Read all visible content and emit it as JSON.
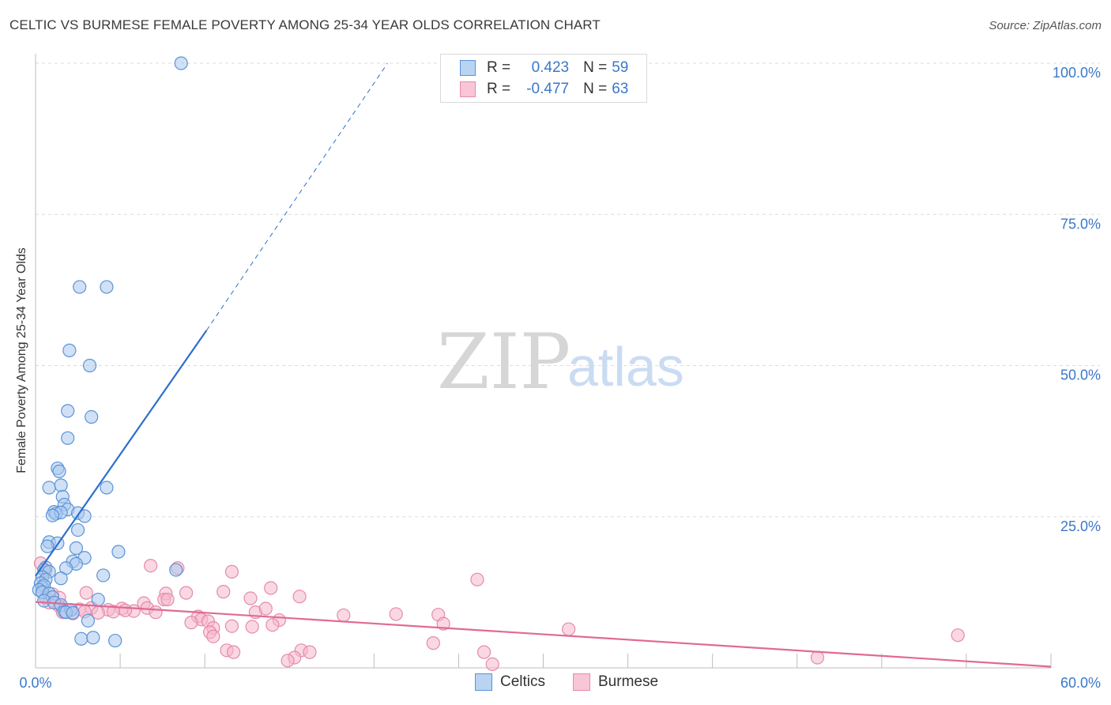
{
  "title": "CELTIC VS BURMESE FEMALE POVERTY AMONG 25-34 YEAR OLDS CORRELATION CHART",
  "source": "Source: ZipAtlas.com",
  "watermark": {
    "zip": "ZIP",
    "atlas": "atlas"
  },
  "colors": {
    "celtics_fill": "#a9c8ef",
    "celtics_stroke": "#5b93d6",
    "celtics_line": "#2c6fcd",
    "burmese_fill": "#f5b8cc",
    "burmese_stroke": "#e58aa8",
    "burmese_line": "#e06a96",
    "axis_label": "#3a78c9",
    "grid": "#dcdcdc"
  },
  "legend_top": [
    {
      "r_label": "R =",
      "r_value": "0.423",
      "n_label": "N =",
      "n_value": "59",
      "series": "celtics"
    },
    {
      "r_label": "R =",
      "r_value": "-0.477",
      "n_label": "N =",
      "n_value": "63",
      "series": "burmese"
    }
  ],
  "legend_bottom": [
    {
      "label": "Celtics",
      "series": "celtics"
    },
    {
      "label": "Burmese",
      "series": "burmese"
    }
  ],
  "chart_data": {
    "type": "scatter",
    "title": "CELTIC VS BURMESE FEMALE POVERTY AMONG 25-34 YEAR OLDS CORRELATION CHART",
    "xlabel": "",
    "ylabel": "Female Poverty Among 25-34 Year Olds",
    "xlim": [
      0,
      60
    ],
    "ylim": [
      0,
      100
    ],
    "x_tick_labels": [
      "0.0%",
      "60.0%"
    ],
    "y_tick_labels": [
      {
        "value": 100,
        "label": "100.0%"
      },
      {
        "value": 75,
        "label": "75.0%"
      },
      {
        "value": 50,
        "label": "50.0%"
      },
      {
        "value": 25,
        "label": "25.0%"
      }
    ],
    "grid": true,
    "series": [
      {
        "name": "Celtics",
        "r": 0.423,
        "n": 59,
        "trend": {
          "x": [
            0,
            10.1
          ],
          "y": [
            15.2,
            55.8
          ],
          "dashed_to": {
            "x": 20.8,
            "y": 100
          }
        },
        "points": [
          [
            8.6,
            100
          ],
          [
            2.6,
            63
          ],
          [
            4.2,
            63
          ],
          [
            2.0,
            52.5
          ],
          [
            3.2,
            50
          ],
          [
            1.9,
            42.5
          ],
          [
            3.3,
            41.5
          ],
          [
            1.9,
            38
          ],
          [
            1.3,
            33
          ],
          [
            1.4,
            32.5
          ],
          [
            0.8,
            29.8
          ],
          [
            1.5,
            30.2
          ],
          [
            4.2,
            29.8
          ],
          [
            1.6,
            28.3
          ],
          [
            1.7,
            27
          ],
          [
            1.1,
            25.8
          ],
          [
            1.2,
            25.5
          ],
          [
            1.9,
            26.2
          ],
          [
            1.5,
            25.7
          ],
          [
            2.5,
            25.6
          ],
          [
            2.9,
            25.1
          ],
          [
            1.0,
            25.2
          ],
          [
            2.5,
            22.8
          ],
          [
            0.8,
            20.8
          ],
          [
            1.3,
            20.6
          ],
          [
            0.7,
            20.1
          ],
          [
            2.4,
            19.8
          ],
          [
            4.9,
            19.2
          ],
          [
            2.9,
            18.2
          ],
          [
            2.2,
            17.6
          ],
          [
            2.4,
            17.2
          ],
          [
            1.8,
            16.5
          ],
          [
            0.6,
            16.6
          ],
          [
            0.5,
            16.2
          ],
          [
            0.8,
            15.9
          ],
          [
            8.3,
            16.2
          ],
          [
            4.0,
            15.3
          ],
          [
            0.4,
            15.0
          ],
          [
            0.6,
            14.6
          ],
          [
            1.5,
            14.8
          ],
          [
            0.3,
            14.0
          ],
          [
            0.4,
            13.3
          ],
          [
            0.5,
            13.6
          ],
          [
            0.2,
            12.9
          ],
          [
            0.4,
            12.5
          ],
          [
            0.8,
            12.3
          ],
          [
            1.0,
            11.7
          ],
          [
            3.7,
            11.3
          ],
          [
            0.5,
            11.1
          ],
          [
            1.1,
            10.8
          ],
          [
            1.5,
            10.4
          ],
          [
            1.7,
            9.3
          ],
          [
            2.1,
            9.6
          ],
          [
            1.8,
            9.2
          ],
          [
            3.1,
            7.8
          ],
          [
            2.7,
            4.8
          ],
          [
            3.4,
            5.0
          ],
          [
            4.7,
            4.5
          ],
          [
            2.2,
            9.1
          ]
        ]
      },
      {
        "name": "Burmese",
        "r": -0.477,
        "n": 63,
        "trend": {
          "x": [
            0,
            60
          ],
          "y": [
            10.9,
            0.2
          ]
        },
        "points": [
          [
            0.3,
            17.3
          ],
          [
            0.6,
            16.1
          ],
          [
            6.8,
            16.9
          ],
          [
            8.4,
            16.5
          ],
          [
            11.6,
            15.9
          ],
          [
            26.1,
            14.6
          ],
          [
            13.9,
            13.2
          ],
          [
            1.0,
            12.2
          ],
          [
            3.0,
            12.4
          ],
          [
            7.7,
            12.3
          ],
          [
            8.9,
            12.4
          ],
          [
            11.1,
            12.6
          ],
          [
            12.7,
            11.5
          ],
          [
            15.6,
            11.8
          ],
          [
            0.6,
            11.6
          ],
          [
            1.4,
            11.6
          ],
          [
            7.6,
            11.3
          ],
          [
            6.4,
            10.7
          ],
          [
            7.8,
            11.3
          ],
          [
            0.8,
            10.8
          ],
          [
            1.4,
            10.2
          ],
          [
            2.6,
            9.7
          ],
          [
            3.3,
            9.9
          ],
          [
            4.3,
            9.6
          ],
          [
            5.1,
            9.8
          ],
          [
            5.8,
            9.4
          ],
          [
            2.9,
            9.3
          ],
          [
            3.7,
            9.1
          ],
          [
            4.6,
            9.3
          ],
          [
            5.3,
            9.5
          ],
          [
            6.6,
            9.9
          ],
          [
            7.1,
            9.2
          ],
          [
            1.6,
            9.2
          ],
          [
            2.2,
            9.0
          ],
          [
            13.0,
            9.2
          ],
          [
            13.6,
            9.8
          ],
          [
            18.2,
            8.7
          ],
          [
            21.3,
            8.9
          ],
          [
            23.8,
            8.8
          ],
          [
            24.1,
            7.3
          ],
          [
            9.6,
            8.5
          ],
          [
            9.8,
            8.0
          ],
          [
            10.2,
            7.7
          ],
          [
            14.4,
            7.9
          ],
          [
            9.2,
            7.5
          ],
          [
            14.0,
            7.1
          ],
          [
            31.5,
            6.4
          ],
          [
            10.5,
            6.6
          ],
          [
            11.6,
            6.9
          ],
          [
            12.8,
            6.8
          ],
          [
            10.3,
            5.9
          ],
          [
            54.5,
            5.4
          ],
          [
            10.5,
            5.2
          ],
          [
            23.5,
            4.1
          ],
          [
            11.3,
            2.9
          ],
          [
            11.7,
            2.6
          ],
          [
            15.7,
            2.9
          ],
          [
            16.2,
            2.6
          ],
          [
            26.5,
            2.6
          ],
          [
            15.3,
            1.7
          ],
          [
            14.9,
            1.2
          ],
          [
            46.2,
            1.7
          ],
          [
            27.0,
            0.6
          ]
        ]
      }
    ]
  }
}
